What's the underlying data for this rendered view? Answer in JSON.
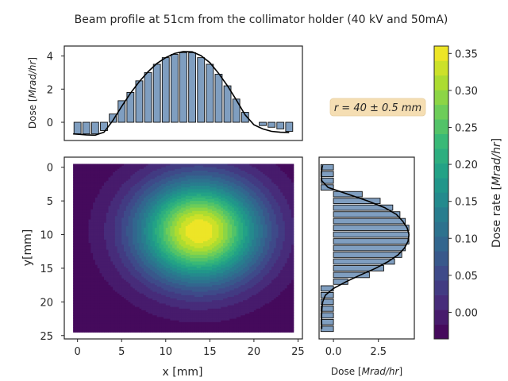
{
  "figure": {
    "title": "Beam profile at 51cm from the collimator holder (40 kV and 50mA)",
    "annotation": "r = 40 ± 0.5 mm"
  },
  "colors": {
    "bar_fill": "#7f9ec0",
    "bar_edge": "#111111",
    "fit_line": "#000000",
    "annotation_bg": "#f5deb3",
    "viridis": [
      "#440154",
      "#482878",
      "#3e4989",
      "#31688e",
      "#26828e",
      "#1f9e89",
      "#35b779",
      "#6ece58",
      "#b5de2b",
      "#fde725"
    ]
  },
  "chart_data": [
    {
      "id": "heatmap",
      "type": "heatmap",
      "xlabel": "x [mm]",
      "ylabel": "y[mm]",
      "xlim": [
        -1.5,
        25.5
      ],
      "ylim": [
        25.5,
        -1.5
      ],
      "xticks": [
        "0",
        "5",
        "10",
        "15",
        "20",
        "25"
      ],
      "yticks": [
        "0",
        "5",
        "10",
        "15",
        "20",
        "25"
      ],
      "data_extent": {
        "x": [
          -0.5,
          24.5
        ],
        "y": [
          -0.5,
          24.5
        ]
      },
      "peak": {
        "x": 13.8,
        "y": 9.5,
        "value": 0.36
      },
      "spread_mm": {
        "x": 4.6,
        "y": 5.0
      },
      "background_value": -0.03
    },
    {
      "id": "x-profile",
      "type": "bar",
      "ylabel": "Dose [Mrad/hr]",
      "ylabel_main": "Dose [",
      "ylabel_unit": "Mrad/hr",
      "ylabel_close": "]",
      "xlim": [
        -1.5,
        25.5
      ],
      "ylim": [
        -1.1,
        4.6
      ],
      "yticks": [
        "0",
        "2",
        "4"
      ],
      "x": [
        0,
        1,
        2,
        3,
        4,
        5,
        6,
        7,
        8,
        9,
        10,
        11,
        12,
        13,
        14,
        15,
        16,
        17,
        18,
        19,
        20,
        21,
        22,
        23,
        24
      ],
      "values": [
        -0.7,
        -0.7,
        -0.7,
        -0.5,
        0.5,
        1.3,
        1.8,
        2.5,
        3.0,
        3.5,
        3.9,
        4.1,
        4.2,
        4.2,
        3.9,
        3.5,
        2.9,
        2.2,
        1.4,
        0.6,
        0.0,
        -0.2,
        -0.3,
        -0.4,
        -0.55
      ],
      "fit": [
        [
          -0.5,
          -0.7
        ],
        [
          0,
          -0.72
        ],
        [
          1,
          -0.76
        ],
        [
          2,
          -0.78
        ],
        [
          3,
          -0.6
        ],
        [
          4,
          0.1
        ],
        [
          5,
          0.95
        ],
        [
          6,
          1.75
        ],
        [
          7,
          2.45
        ],
        [
          8,
          3.05
        ],
        [
          9,
          3.55
        ],
        [
          10,
          3.9
        ],
        [
          11,
          4.15
        ],
        [
          12,
          4.27
        ],
        [
          13,
          4.25
        ],
        [
          14,
          4.02
        ],
        [
          15,
          3.6
        ],
        [
          16,
          2.95
        ],
        [
          17,
          2.2
        ],
        [
          18,
          1.35
        ],
        [
          19,
          0.45
        ],
        [
          20,
          -0.15
        ],
        [
          21,
          -0.4
        ],
        [
          22,
          -0.55
        ],
        [
          23,
          -0.6
        ],
        [
          24,
          -0.62
        ]
      ]
    },
    {
      "id": "y-profile",
      "type": "bar",
      "orientation": "horizontal",
      "xlabel": "Dose [Mrad/hr]",
      "xlabel_main": "Dose [",
      "xlabel_unit": "Mrad/hr",
      "xlabel_close": "]",
      "xlim": [
        -0.8,
        4.5
      ],
      "ylim": [
        25.5,
        -1.5
      ],
      "xticks": [
        "0.0",
        "2.5"
      ],
      "y": [
        0,
        1,
        2,
        3,
        4,
        5,
        6,
        7,
        8,
        9,
        10,
        11,
        12,
        13,
        14,
        15,
        16,
        17,
        18,
        19,
        20,
        21,
        22,
        23,
        24
      ],
      "values": [
        -0.7,
        -0.7,
        -0.7,
        -0.7,
        1.6,
        2.6,
        3.3,
        3.7,
        4.0,
        4.2,
        4.2,
        4.2,
        4.0,
        3.8,
        3.4,
        2.8,
        2.0,
        0.8,
        -0.7,
        -0.7,
        -0.7,
        -0.7,
        -0.7,
        -0.7,
        -0.7
      ],
      "fit": [
        [
          -0.3,
          -0.6
        ],
        [
          0,
          -0.63
        ],
        [
          1,
          -0.68
        ],
        [
          2,
          -0.65
        ],
        [
          3,
          -0.3
        ],
        [
          4,
          0.8
        ],
        [
          5,
          1.9
        ],
        [
          6,
          2.85
        ],
        [
          7,
          3.5
        ],
        [
          8,
          3.85
        ],
        [
          9,
          4.1
        ],
        [
          10,
          4.2
        ],
        [
          11,
          4.15
        ],
        [
          12,
          3.95
        ],
        [
          13,
          3.6
        ],
        [
          14,
          3.05
        ],
        [
          15,
          2.35
        ],
        [
          16,
          1.5
        ],
        [
          17,
          0.7
        ],
        [
          18,
          0.0
        ],
        [
          19,
          -0.45
        ],
        [
          20,
          -0.6
        ],
        [
          21,
          -0.64
        ],
        [
          22,
          -0.66
        ],
        [
          23,
          -0.66
        ],
        [
          24,
          -0.65
        ]
      ]
    },
    {
      "id": "colorbar",
      "type": "colorbar",
      "label": "Dose rate [Mrad/hr]",
      "label_main": "Dose rate [",
      "label_unit": "Mrad/hr",
      "label_close": "]",
      "range": [
        -0.036,
        0.36
      ],
      "levels": 20,
      "ticks": [
        {
          "value": 0.0,
          "label": "0.00"
        },
        {
          "value": 0.05,
          "label": "0.05"
        },
        {
          "value": 0.1,
          "label": "0.10"
        },
        {
          "value": 0.15,
          "label": "0.15"
        },
        {
          "value": 0.2,
          "label": "0.20"
        },
        {
          "value": 0.25,
          "label": "0.25"
        },
        {
          "value": 0.3,
          "label": "0.30"
        },
        {
          "value": 0.35,
          "label": "0.35"
        }
      ]
    }
  ]
}
